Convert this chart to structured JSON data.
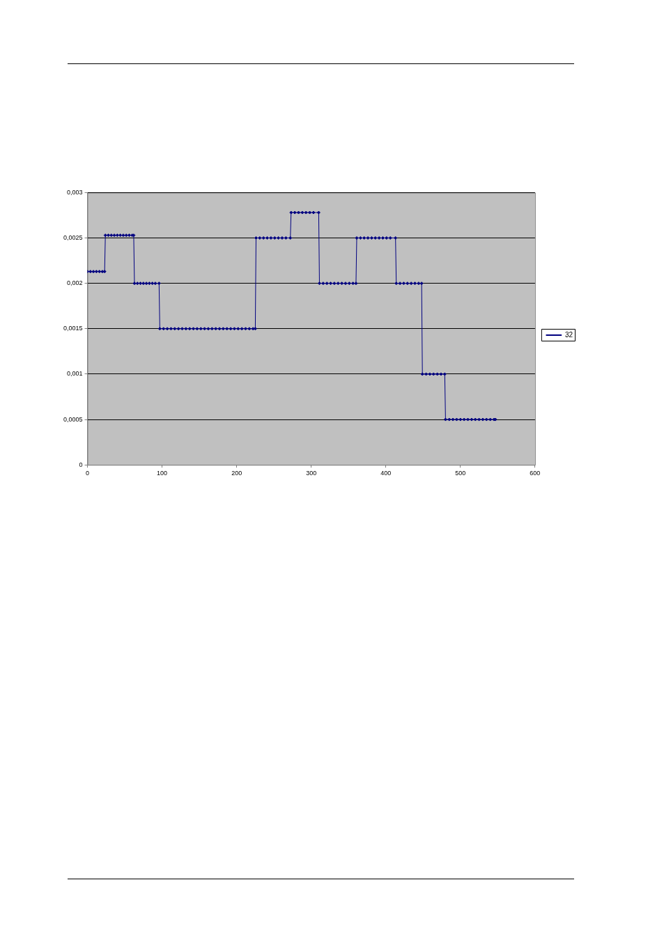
{
  "chart_data": {
    "type": "line",
    "xlim": [
      0,
      600
    ],
    "xticks": [
      0,
      100,
      200,
      300,
      400,
      500,
      600
    ],
    "ylim": [
      0,
      0.003
    ],
    "yticks": [
      0,
      {
        "value": 0.0005,
        "label": "0,0005"
      },
      {
        "value": 0.001,
        "label": "0,001"
      },
      {
        "value": 0.0015,
        "label": "0,0015"
      },
      {
        "value": 0.002,
        "label": "0,002"
      },
      {
        "value": 0.0025,
        "label": "0,0025"
      },
      {
        "value": 0.003,
        "label": "0,003"
      }
    ],
    "grid": "y",
    "legend": "right",
    "marker": "diamond",
    "line_style": "solid",
    "series": [
      {
        "name": "32",
        "color": "#000080",
        "x": [
          0,
          4,
          8,
          12,
          16,
          20,
          23,
          24,
          28,
          32,
          36,
          40,
          44,
          48,
          52,
          56,
          60,
          62,
          63,
          67,
          71,
          75,
          79,
          83,
          87,
          91,
          96,
          97,
          102,
          107,
          112,
          117,
          122,
          127,
          132,
          137,
          142,
          147,
          152,
          157,
          162,
          167,
          172,
          177,
          182,
          187,
          192,
          197,
          202,
          207,
          212,
          217,
          222,
          225,
          226,
          231,
          236,
          241,
          246,
          251,
          256,
          261,
          266,
          272,
          273,
          278,
          283,
          288,
          293,
          298,
          303,
          310,
          311,
          316,
          321,
          326,
          331,
          336,
          341,
          346,
          351,
          356,
          360,
          361,
          366,
          371,
          376,
          381,
          386,
          391,
          396,
          401,
          406,
          413,
          414,
          419,
          424,
          429,
          434,
          439,
          444,
          448,
          449,
          454,
          459,
          464,
          469,
          474,
          479,
          480,
          485,
          490,
          495,
          500,
          505,
          510,
          515,
          520,
          525,
          530,
          535,
          540,
          545,
          547
        ],
        "values": [
          0.00213,
          0.00213,
          0.00213,
          0.00213,
          0.00213,
          0.00213,
          0.00213,
          0.00253,
          0.00253,
          0.00253,
          0.00253,
          0.00253,
          0.00253,
          0.00253,
          0.00253,
          0.00253,
          0.00253,
          0.00253,
          0.002,
          0.002,
          0.002,
          0.002,
          0.002,
          0.002,
          0.002,
          0.002,
          0.002,
          0.0015,
          0.0015,
          0.0015,
          0.0015,
          0.0015,
          0.0015,
          0.0015,
          0.0015,
          0.0015,
          0.0015,
          0.0015,
          0.0015,
          0.0015,
          0.0015,
          0.0015,
          0.0015,
          0.0015,
          0.0015,
          0.0015,
          0.0015,
          0.0015,
          0.0015,
          0.0015,
          0.0015,
          0.0015,
          0.0015,
          0.0015,
          0.0025,
          0.0025,
          0.0025,
          0.0025,
          0.0025,
          0.0025,
          0.0025,
          0.0025,
          0.0025,
          0.0025,
          0.00278,
          0.00278,
          0.00278,
          0.00278,
          0.00278,
          0.00278,
          0.00278,
          0.00278,
          0.002,
          0.002,
          0.002,
          0.002,
          0.002,
          0.002,
          0.002,
          0.002,
          0.002,
          0.002,
          0.002,
          0.0025,
          0.0025,
          0.0025,
          0.0025,
          0.0025,
          0.0025,
          0.0025,
          0.0025,
          0.0025,
          0.0025,
          0.0025,
          0.002,
          0.002,
          0.002,
          0.002,
          0.002,
          0.002,
          0.002,
          0.002,
          0.001,
          0.001,
          0.001,
          0.001,
          0.001,
          0.001,
          0.001,
          0.0005,
          0.0005,
          0.0005,
          0.0005,
          0.0005,
          0.0005,
          0.0005,
          0.0005,
          0.0005,
          0.0005,
          0.0005,
          0.0005,
          0.0005,
          0.0005,
          0.0005
        ]
      }
    ]
  }
}
